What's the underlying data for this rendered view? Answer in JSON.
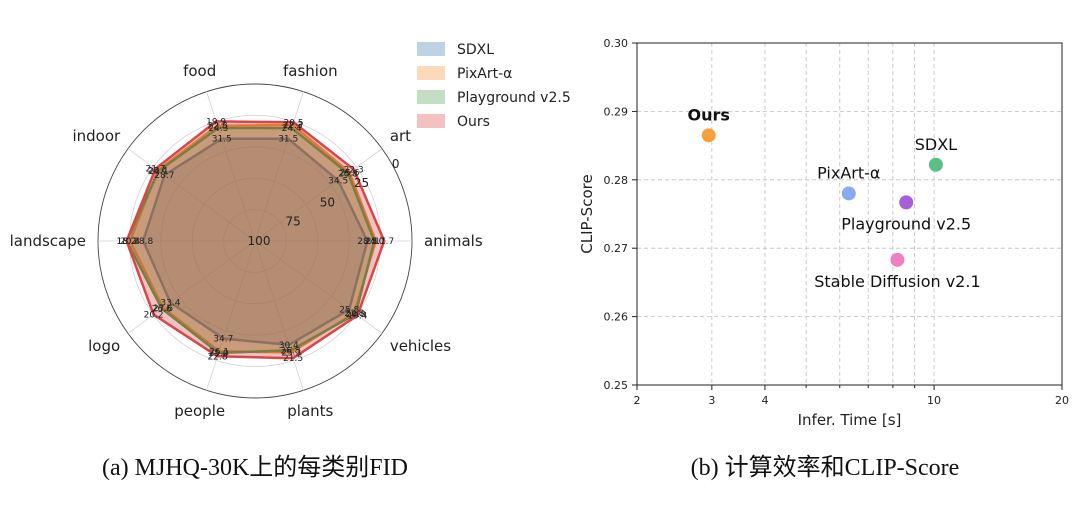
{
  "chart_data": [
    {
      "type": "radar",
      "caption": "(a) MJHQ-30K上的每类别FID",
      "categories": [
        "fashion",
        "art",
        "animals",
        "vehicles",
        "plants",
        "people",
        "logo",
        "landscape",
        "indoor",
        "food"
      ],
      "radial_ticks": [
        "0",
        "25",
        "50",
        "75",
        "100"
      ],
      "r_axis": {
        "center_value": 100,
        "outer_value": 0,
        "inverted": true
      },
      "series": [
        {
          "name": "SDXL",
          "color": "#3b75af",
          "values": [
            31.5,
            34.5,
            28.5,
            25.8,
            30.4,
            34.7,
            33.4,
            28.8,
            28.7,
            31.5
          ]
        },
        {
          "name": "PixArt-α",
          "color": "#f28e2b",
          "values": [
            22.3,
            25.6,
            23.1,
            21.8,
            25.3,
            26.1,
            27.6,
            20.4,
            23.4,
            22.8
          ]
        },
        {
          "name": "Playground v2.5",
          "color": "#4a9a45",
          "values": [
            24.4,
            26.8,
            24.0,
            20.8,
            26.8,
            25.0,
            26.6,
            18.2,
            24.1,
            24.3
          ]
        },
        {
          "name": "Ours",
          "color": "#d9464a",
          "values": [
            20.5,
            22.3,
            17.7,
            19.4,
            21.5,
            22.8,
            20.2,
            18.2,
            21.7,
            19.9
          ]
        }
      ],
      "value_labels": [
        [
          "31.5",
          "34.5",
          "28.5",
          "25.8",
          "30.4",
          "34.7",
          "33.4",
          "28.8",
          "28.7",
          "31.5"
        ],
        [
          "22.3",
          "25.6",
          "23.1",
          "21.8",
          "25.3",
          "26.1",
          "27.6",
          "20.4",
          "23.4",
          "22.8"
        ],
        [
          "24.4",
          "26.8",
          "24.0",
          "20.8",
          "26.8",
          "25.0",
          "26.6",
          "18.2",
          "24.1",
          "24.3"
        ],
        [
          "20.5",
          "22.3",
          "17.7",
          "19.4",
          "21.5",
          "22.8",
          "20.2",
          "18.2",
          "21.7",
          "19.9"
        ]
      ],
      "legend": "top-right"
    },
    {
      "type": "scatter",
      "caption": "(b) 计算效率和CLIP-Score",
      "xlabel": "Infer. Time [s]",
      "ylabel": "CLIP-Score",
      "x_scale": "log",
      "xlim": [
        2,
        20
      ],
      "ylim": [
        0.25,
        0.3
      ],
      "x_ticks": [
        2,
        3,
        4,
        10,
        20
      ],
      "y_ticks": [
        "0.25",
        "0.26",
        "0.27",
        "0.28",
        "0.29",
        "0.30"
      ],
      "grid": true,
      "points": [
        {
          "name": "Ours",
          "x": 2.95,
          "y": 0.2865,
          "color": "#f6a03e",
          "bold": true,
          "label_pos": "above"
        },
        {
          "name": "PixArt-α",
          "x": 6.3,
          "y": 0.278,
          "color": "#88aaee",
          "label_pos": "above"
        },
        {
          "name": "SDXL",
          "x": 10.1,
          "y": 0.2822,
          "color": "#5cbf85",
          "label_pos": "above"
        },
        {
          "name": "Playground v2.5",
          "x": 8.6,
          "y": 0.2767,
          "color": "#a65fd6",
          "label_pos": "below"
        },
        {
          "name": "Stable Diffusion v2.1",
          "x": 8.2,
          "y": 0.2683,
          "color": "#f07ec2",
          "label_pos": "below"
        }
      ]
    }
  ]
}
